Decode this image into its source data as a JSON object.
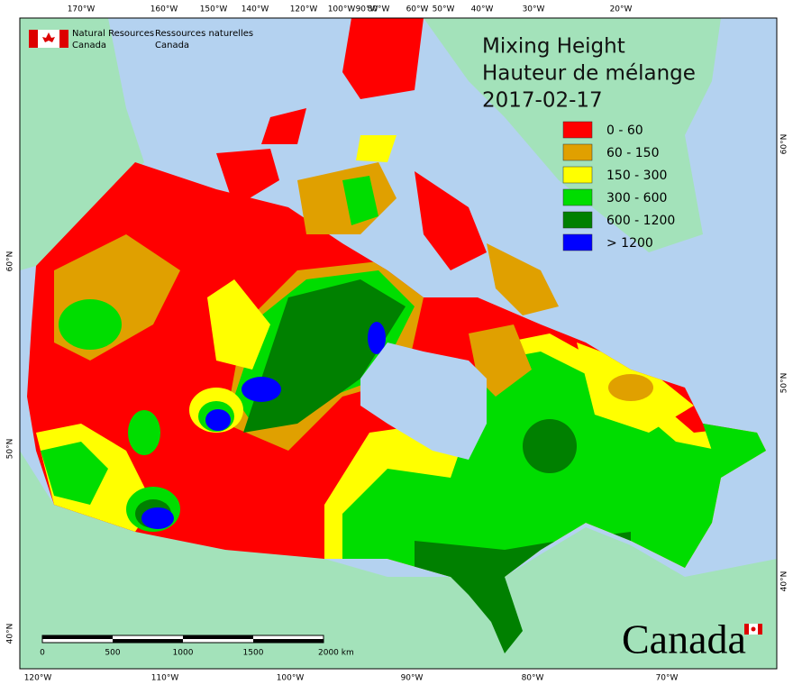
{
  "header": {
    "agency_en": [
      "Natural Resources",
      "Canada"
    ],
    "agency_fr": [
      "Ressources naturelles",
      "Canada"
    ]
  },
  "title": [
    "Mixing Height",
    "Hauteur de mélange",
    "2017-02-17"
  ],
  "legend": [
    {
      "label": "0 - 60",
      "color": "#ff0000"
    },
    {
      "label": "60 - 150",
      "color": "#e0a000"
    },
    {
      "label": "150 - 300",
      "color": "#ffff00"
    },
    {
      "label": "300 - 600",
      "color": "#00dd00"
    },
    {
      "label": "600 - 1200",
      "color": "#008000"
    },
    {
      "label": "> 1200",
      "color": "#0000ff"
    }
  ],
  "graticule": {
    "top": [
      "170°W",
      "160°W",
      "150°W",
      "140°W",
      "120°W",
      "100°W",
      "90°W",
      "80°W",
      "60°W",
      "50°W",
      "40°W",
      "30°W",
      "20°W"
    ],
    "bottom": [
      "120°W",
      "110°W",
      "100°W",
      "90°W",
      "80°W",
      "70°W"
    ],
    "left": [
      "60°N",
      "50°N",
      "40°N"
    ],
    "right": [
      "60°N",
      "50°N",
      "40°N"
    ]
  },
  "scale_bar": {
    "labels": [
      "0",
      "500",
      "1000",
      "1500",
      "2000 km"
    ]
  },
  "wordmark": "Canada"
}
